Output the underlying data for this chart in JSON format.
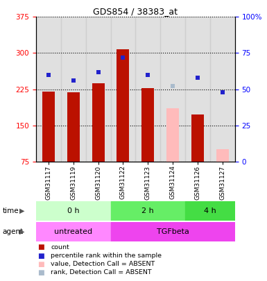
{
  "title": "GDS854 / 38383_at",
  "samples": [
    "GSM31117",
    "GSM31119",
    "GSM31120",
    "GSM31122",
    "GSM31123",
    "GSM31124",
    "GSM31126",
    "GSM31127"
  ],
  "bar_values": [
    220,
    218,
    238,
    308,
    228,
    0,
    172,
    0
  ],
  "bar_absent_values": [
    0,
    0,
    0,
    0,
    0,
    185,
    0,
    100
  ],
  "blue_pct": [
    60,
    56,
    62,
    72,
    60,
    0,
    58,
    48
  ],
  "blue_absent_pct": [
    0,
    0,
    0,
    0,
    0,
    52,
    0,
    0
  ],
  "bar_color": "#bb1100",
  "bar_absent_color": "#ffbbbb",
  "blue_color": "#2222cc",
  "blue_absent_color": "#aabbcc",
  "ylim_left": [
    75,
    375
  ],
  "ylim_right": [
    0,
    100
  ],
  "yticks_left": [
    75,
    150,
    225,
    300,
    375
  ],
  "yticks_right": [
    0,
    25,
    50,
    75,
    100
  ],
  "yticklabels_right": [
    "0",
    "25",
    "50",
    "75",
    "100%"
  ],
  "time_groups": [
    {
      "label": "0 h",
      "start": 0,
      "end": 3,
      "color": "#ccffcc"
    },
    {
      "label": "2 h",
      "start": 3,
      "end": 6,
      "color": "#66ee66"
    },
    {
      "label": "4 h",
      "start": 6,
      "end": 8,
      "color": "#44dd44"
    }
  ],
  "agent_groups": [
    {
      "label": "untreated",
      "start": 0,
      "end": 3,
      "color": "#ff88ff"
    },
    {
      "label": "TGFbeta",
      "start": 3,
      "end": 8,
      "color": "#ee44ee"
    }
  ],
  "bar_width": 0.5,
  "legend_items": [
    {
      "color": "#bb1100",
      "label": "count"
    },
    {
      "color": "#2222cc",
      "label": "percentile rank within the sample"
    },
    {
      "color": "#ffbbbb",
      "label": "value, Detection Call = ABSENT"
    },
    {
      "color": "#aabbcc",
      "label": "rank, Detection Call = ABSENT"
    }
  ],
  "bg_color": "#ffffff",
  "col_bg_color": "#cccccc"
}
